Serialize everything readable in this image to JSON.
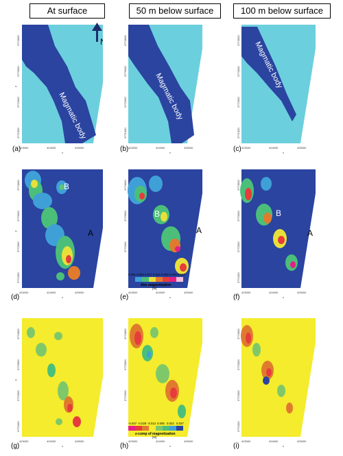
{
  "headers": [
    "At surface",
    "50 m below surface",
    "100 m below surface"
  ],
  "north_label": "N",
  "panel_labels": [
    "(a)",
    "(b)",
    "(c)",
    "(d)",
    "(e)",
    "(f)",
    "(g)",
    "(h)",
    "(i)"
  ],
  "magmatic_label": "Magmatic body",
  "anomaly_labels": {
    "a": "A",
    "b": "B"
  },
  "x_ticks": [
    "423000",
    "424000",
    "425000"
  ],
  "y_ticks": [
    "3774000",
    "3773000",
    "3772000",
    "3771000"
  ],
  "axis_x": "x",
  "axis_y": "y",
  "abs_colorbar": {
    "title": "Abs magnetization",
    "unit": "[SI]",
    "ticks": [
      "0.001",
      "0.009",
      "0.017",
      "0.024",
      "0.032",
      "0.040",
      "0.047"
    ]
  },
  "zcomp_colorbar": {
    "title": "z-comp of magnetization",
    "unit": "[SI]",
    "ticks": [
      "-0.047",
      "-0.028",
      "-0.012",
      "0.006",
      "0.022",
      "0.037"
    ]
  },
  "colors": {
    "dark_blue": "#2a44a0",
    "light_cyan": "#6ccfdd",
    "yellow": "#f4ec2c"
  }
}
